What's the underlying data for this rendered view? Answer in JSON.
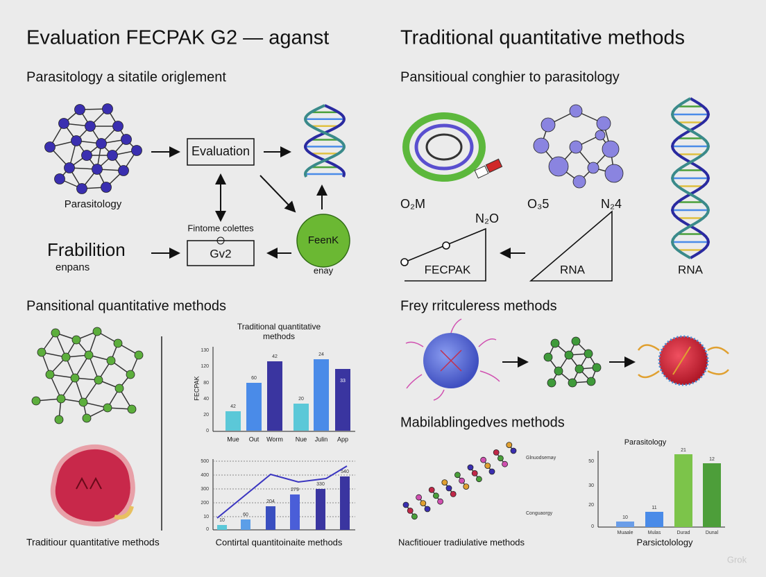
{
  "header": {
    "left_title": "Evaluation FECPAK G2 — aganst",
    "right_title": "Traditional quantitative methods"
  },
  "top_left": {
    "subtitle": "Parasitology a sitatile origlement",
    "network_label": "Parasitology",
    "box_1": "Evaluation",
    "box_2_caption": "Fintome colettes",
    "box_2": "Gv2",
    "big_label": "Frabilition",
    "big_label_sub": "enpans",
    "circle_label": "FeenK",
    "circle_caption": "enay"
  },
  "top_right": {
    "subtitle": "Pansitioual conghier to parasitology",
    "labels": [
      "O₂M",
      "O₃5",
      "N₂4",
      "N₂O",
      "FECPAK",
      "RNA",
      "RNA"
    ]
  },
  "middle_left": {
    "title": "Pansitional quantitative methods",
    "caption": "Traditiour quantitative methods"
  },
  "chart_1": {
    "title_lines": [
      "Traditional quantitative",
      "methods"
    ],
    "y_label": "FECPAK",
    "y_ticks": [
      "130",
      "120",
      "80",
      "40",
      "20",
      "0"
    ],
    "categories": [
      "Mue",
      "Out",
      "Worm",
      "Nue",
      "Julin",
      "App"
    ],
    "bar_labels": [
      "42",
      "60",
      "42",
      "20",
      "24",
      "33"
    ]
  },
  "chart_2": {
    "y_ticks": [
      "500",
      "400",
      "300",
      "200",
      "10",
      "0"
    ],
    "bar_labels": [
      "10",
      "60",
      "204",
      "279",
      "330",
      "540"
    ],
    "caption": "Contirtal quantitoinaite methods"
  },
  "middle_right": {
    "title": "Frey rritculeress methods"
  },
  "bottom_right": {
    "title": "Mabilablingedves methods",
    "chain_labels": [
      "Glnuodsemay",
      "Conguaorgy"
    ],
    "caption": "Nacfitiouer tradiulative methods"
  },
  "chart_3": {
    "title": "Parasitology",
    "y_ticks": [
      "50",
      "30",
      "20",
      "0"
    ],
    "categories": [
      "Muaale",
      "Mulas",
      "Durad",
      "Dunal"
    ],
    "bar_labels": [
      "10",
      "11",
      "21",
      "12"
    ],
    "caption": "Parsictolology"
  },
  "watermark": "Grok"
}
